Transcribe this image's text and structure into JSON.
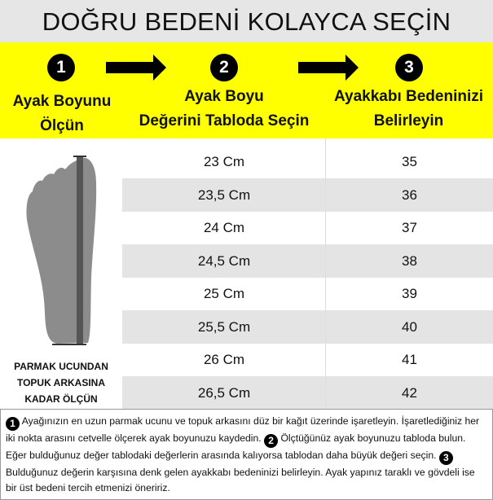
{
  "title": "DOĞRU BEDENİ KOLAYCA SEÇİN",
  "colors": {
    "band": "#ffff00",
    "title_bg": "#e6e6e6",
    "row_alt": "#e4e4e4"
  },
  "steps": [
    {
      "number": "1",
      "label_line1": "Ayak Boyunu",
      "label_line2": "Ölçün"
    },
    {
      "number": "2",
      "label_line1": "Ayak Boyu",
      "label_line2": "Değerini Tabloda Seçin"
    },
    {
      "number": "3",
      "label_line1": "Ayakkabı Bedeninizi",
      "label_line2": "Belirleyin"
    }
  ],
  "foot_label": [
    "PARMAK UCUNDAN",
    "TOPUK ARKASINA",
    "KADAR ÖLÇÜN"
  ],
  "table": [
    {
      "foot_length": "23 Cm",
      "size": "35"
    },
    {
      "foot_length": "23,5 Cm",
      "size": "36"
    },
    {
      "foot_length": "24 Cm",
      "size": "37"
    },
    {
      "foot_length": "24,5 Cm",
      "size": "38"
    },
    {
      "foot_length": "25 Cm",
      "size": "39"
    },
    {
      "foot_length": "25,5 Cm",
      "size": "40"
    },
    {
      "foot_length": "26 Cm",
      "size": "41"
    },
    {
      "foot_length": "26,5 Cm",
      "size": "42"
    }
  ],
  "notes": {
    "n1": "1",
    "t1": "Ayağınızın en uzun parmak ucunu ve topuk arkasını düz bir kağıt üzerinde işaretleyin. İşaretlediğiniz her iki nokta arasını cetvelle ölçerek ayak boyunuzu kaydedin.",
    "n2": "2",
    "t2": "Ölçtüğünüz ayak boyunuzu tabloda bulun. Eğer bulduğunuz değer tablodaki değerlerin arasında kalıyorsa tablodan daha büyük değeri seçin.",
    "n3": "3",
    "t3": "Bulduğunuz değerin karşısına denk gelen ayakkabı bedeninizi belirleyin. Ayak yapınız taraklı ve gövdeli ise bir üst bedeni tercih etmenizi öneririz."
  }
}
